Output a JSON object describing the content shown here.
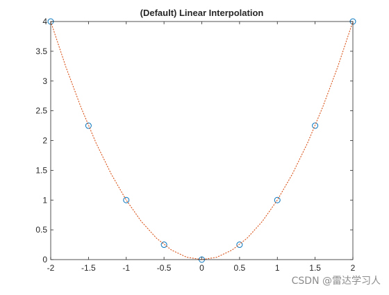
{
  "chart_data": {
    "type": "line",
    "title": "(Default) Linear Interpolation",
    "xlabel": "",
    "ylabel": "",
    "xlim": [
      -2,
      2
    ],
    "ylim": [
      0,
      4
    ],
    "xticks": [
      -2,
      -1.5,
      -1,
      -0.5,
      0,
      0.5,
      1,
      1.5,
      2
    ],
    "xtick_labels": [
      "-2",
      "-1.5",
      "-1",
      "-0.5",
      "0",
      "0.5",
      "1",
      "1.5",
      "2"
    ],
    "yticks": [
      0,
      0.5,
      1,
      1.5,
      2,
      2.5,
      3,
      3.5,
      4
    ],
    "ytick_labels": [
      "0",
      "0.5",
      "1",
      "1.5",
      "2",
      "2.5",
      "3",
      "3.5",
      "4"
    ],
    "grid": false,
    "series": [
      {
        "style": "markers",
        "marker": "circle",
        "color": "#0072BD",
        "x": [
          -2,
          -1.5,
          -1,
          -0.5,
          0,
          0.5,
          1,
          1.5,
          2
        ],
        "y": [
          4,
          2.25,
          1,
          0.25,
          0,
          0.25,
          1,
          2.25,
          4
        ]
      },
      {
        "style": "dotted-line",
        "color": "#D95319",
        "x": [
          -2,
          -1.8,
          -1.6,
          -1.4,
          -1.2,
          -1,
          -0.8,
          -0.6,
          -0.4,
          -0.2,
          0,
          0.2,
          0.4,
          0.6,
          0.8,
          1,
          1.2,
          1.4,
          1.6,
          1.8,
          2
        ],
        "y": [
          4,
          3.24,
          2.56,
          1.96,
          1.44,
          1,
          0.64,
          0.36,
          0.16,
          0.04,
          0,
          0.04,
          0.16,
          0.36,
          0.64,
          1,
          1.44,
          1.96,
          2.56,
          3.24,
          4
        ]
      }
    ]
  },
  "watermark": "CSDN @雷达学习人"
}
